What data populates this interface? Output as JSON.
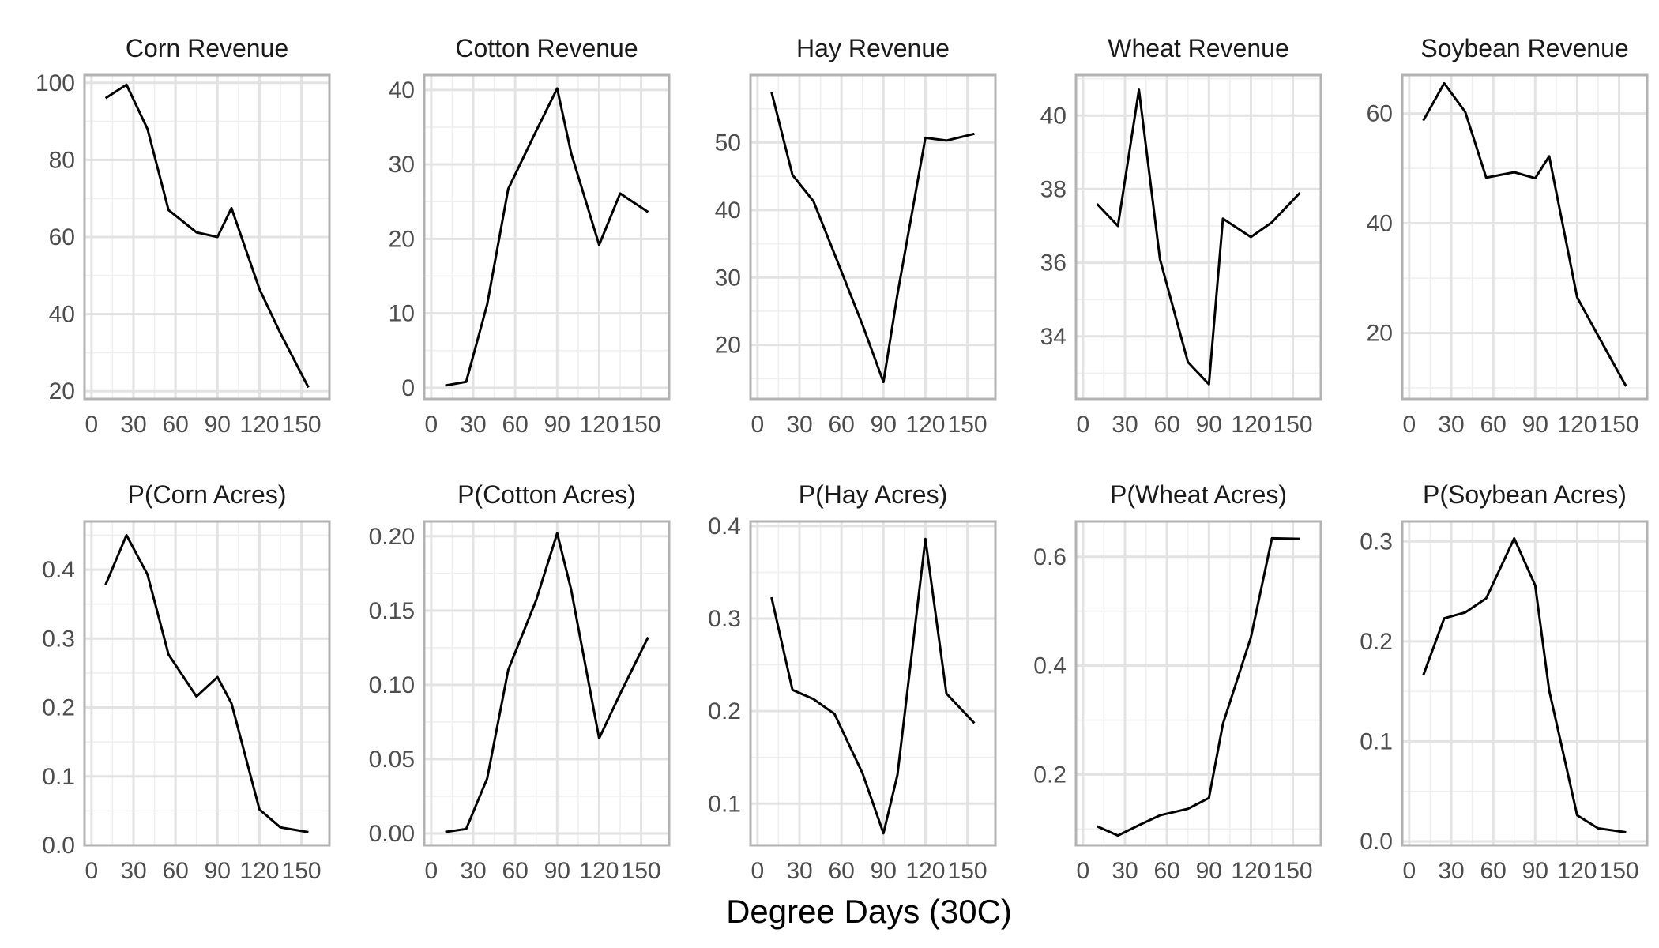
{
  "chart_data": {
    "type": "line",
    "xlabel": "Degree Days (30C)",
    "x": [
      10,
      25,
      40,
      55,
      75,
      90,
      100,
      120,
      135,
      155
    ],
    "panels": [
      {
        "title": "Corn Revenue",
        "yticks": [
          20,
          40,
          60,
          80,
          100
        ],
        "ylim": [
          18,
          102
        ],
        "values": [
          96,
          99.5,
          88,
          67,
          61.2,
          60,
          67.5,
          46.5,
          35,
          21
        ]
      },
      {
        "title": "Cotton Revenue",
        "yticks": [
          0,
          10,
          20,
          30,
          40
        ],
        "ylim": [
          -1.5,
          42
        ],
        "values": [
          0.3,
          0.8,
          11.2,
          26.7,
          34.5,
          40.2,
          31.5,
          19.2,
          26.1,
          23.6
        ]
      },
      {
        "title": "Hay Revenue",
        "yticks": [
          20,
          30,
          40,
          50
        ],
        "ylim": [
          12,
          60
        ],
        "values": [
          57.5,
          45.2,
          41.3,
          33.5,
          23,
          14.5,
          27.5,
          50.7,
          50.3,
          51.3
        ]
      },
      {
        "title": "Wheat Revenue",
        "yticks": [
          34,
          36,
          38,
          40
        ],
        "ylim": [
          32.3,
          41.1
        ],
        "values": [
          37.6,
          37,
          40.7,
          36.1,
          33.3,
          32.7,
          37.2,
          36.7,
          37.1,
          37.9
        ]
      },
      {
        "title": "Soybean Revenue",
        "yticks": [
          20,
          40,
          60
        ],
        "ylim": [
          8,
          67
        ],
        "values": [
          58.7,
          65.5,
          60.3,
          48.3,
          49.3,
          48.2,
          52.2,
          26.5,
          19.5,
          10.3
        ]
      },
      {
        "title": "P(Corn Acres)",
        "yticks": [
          0.0,
          0.1,
          0.2,
          0.3,
          0.4
        ],
        "ylim": [
          0,
          0.47
        ],
        "values": [
          0.378,
          0.45,
          0.393,
          0.277,
          0.216,
          0.244,
          0.206,
          0.052,
          0.026,
          0.019
        ]
      },
      {
        "title": "P(Cotton Acres)",
        "yticks": [
          0.0,
          0.05,
          0.1,
          0.15,
          0.2
        ],
        "ylim": [
          -0.008,
          0.21
        ],
        "values": [
          0.001,
          0.003,
          0.037,
          0.11,
          0.157,
          0.202,
          0.164,
          0.064,
          0.094,
          0.132
        ]
      },
      {
        "title": "P(Hay Acres)",
        "yticks": [
          0.1,
          0.2,
          0.3,
          0.4
        ],
        "ylim": [
          0.055,
          0.405
        ],
        "values": [
          0.323,
          0.223,
          0.213,
          0.197,
          0.133,
          0.068,
          0.131,
          0.386,
          0.219,
          0.187
        ]
      },
      {
        "title": "P(Wheat Acres)",
        "yticks": [
          0.2,
          0.4,
          0.6
        ],
        "ylim": [
          0.07,
          0.665
        ],
        "values": [
          0.105,
          0.088,
          0.107,
          0.125,
          0.137,
          0.157,
          0.293,
          0.452,
          0.634,
          0.633
        ]
      },
      {
        "title": "P(Soybean Acres)",
        "yticks": [
          0.0,
          0.1,
          0.2,
          0.3
        ],
        "ylim": [
          -0.004,
          0.32
        ],
        "values": [
          0.166,
          0.223,
          0.229,
          0.243,
          0.303,
          0.256,
          0.151,
          0.026,
          0.013,
          0.009
        ]
      }
    ],
    "xticks": [
      0,
      30,
      60,
      90,
      120,
      150
    ],
    "xlim": [
      -5,
      170
    ],
    "grid": true,
    "legend": "none"
  }
}
